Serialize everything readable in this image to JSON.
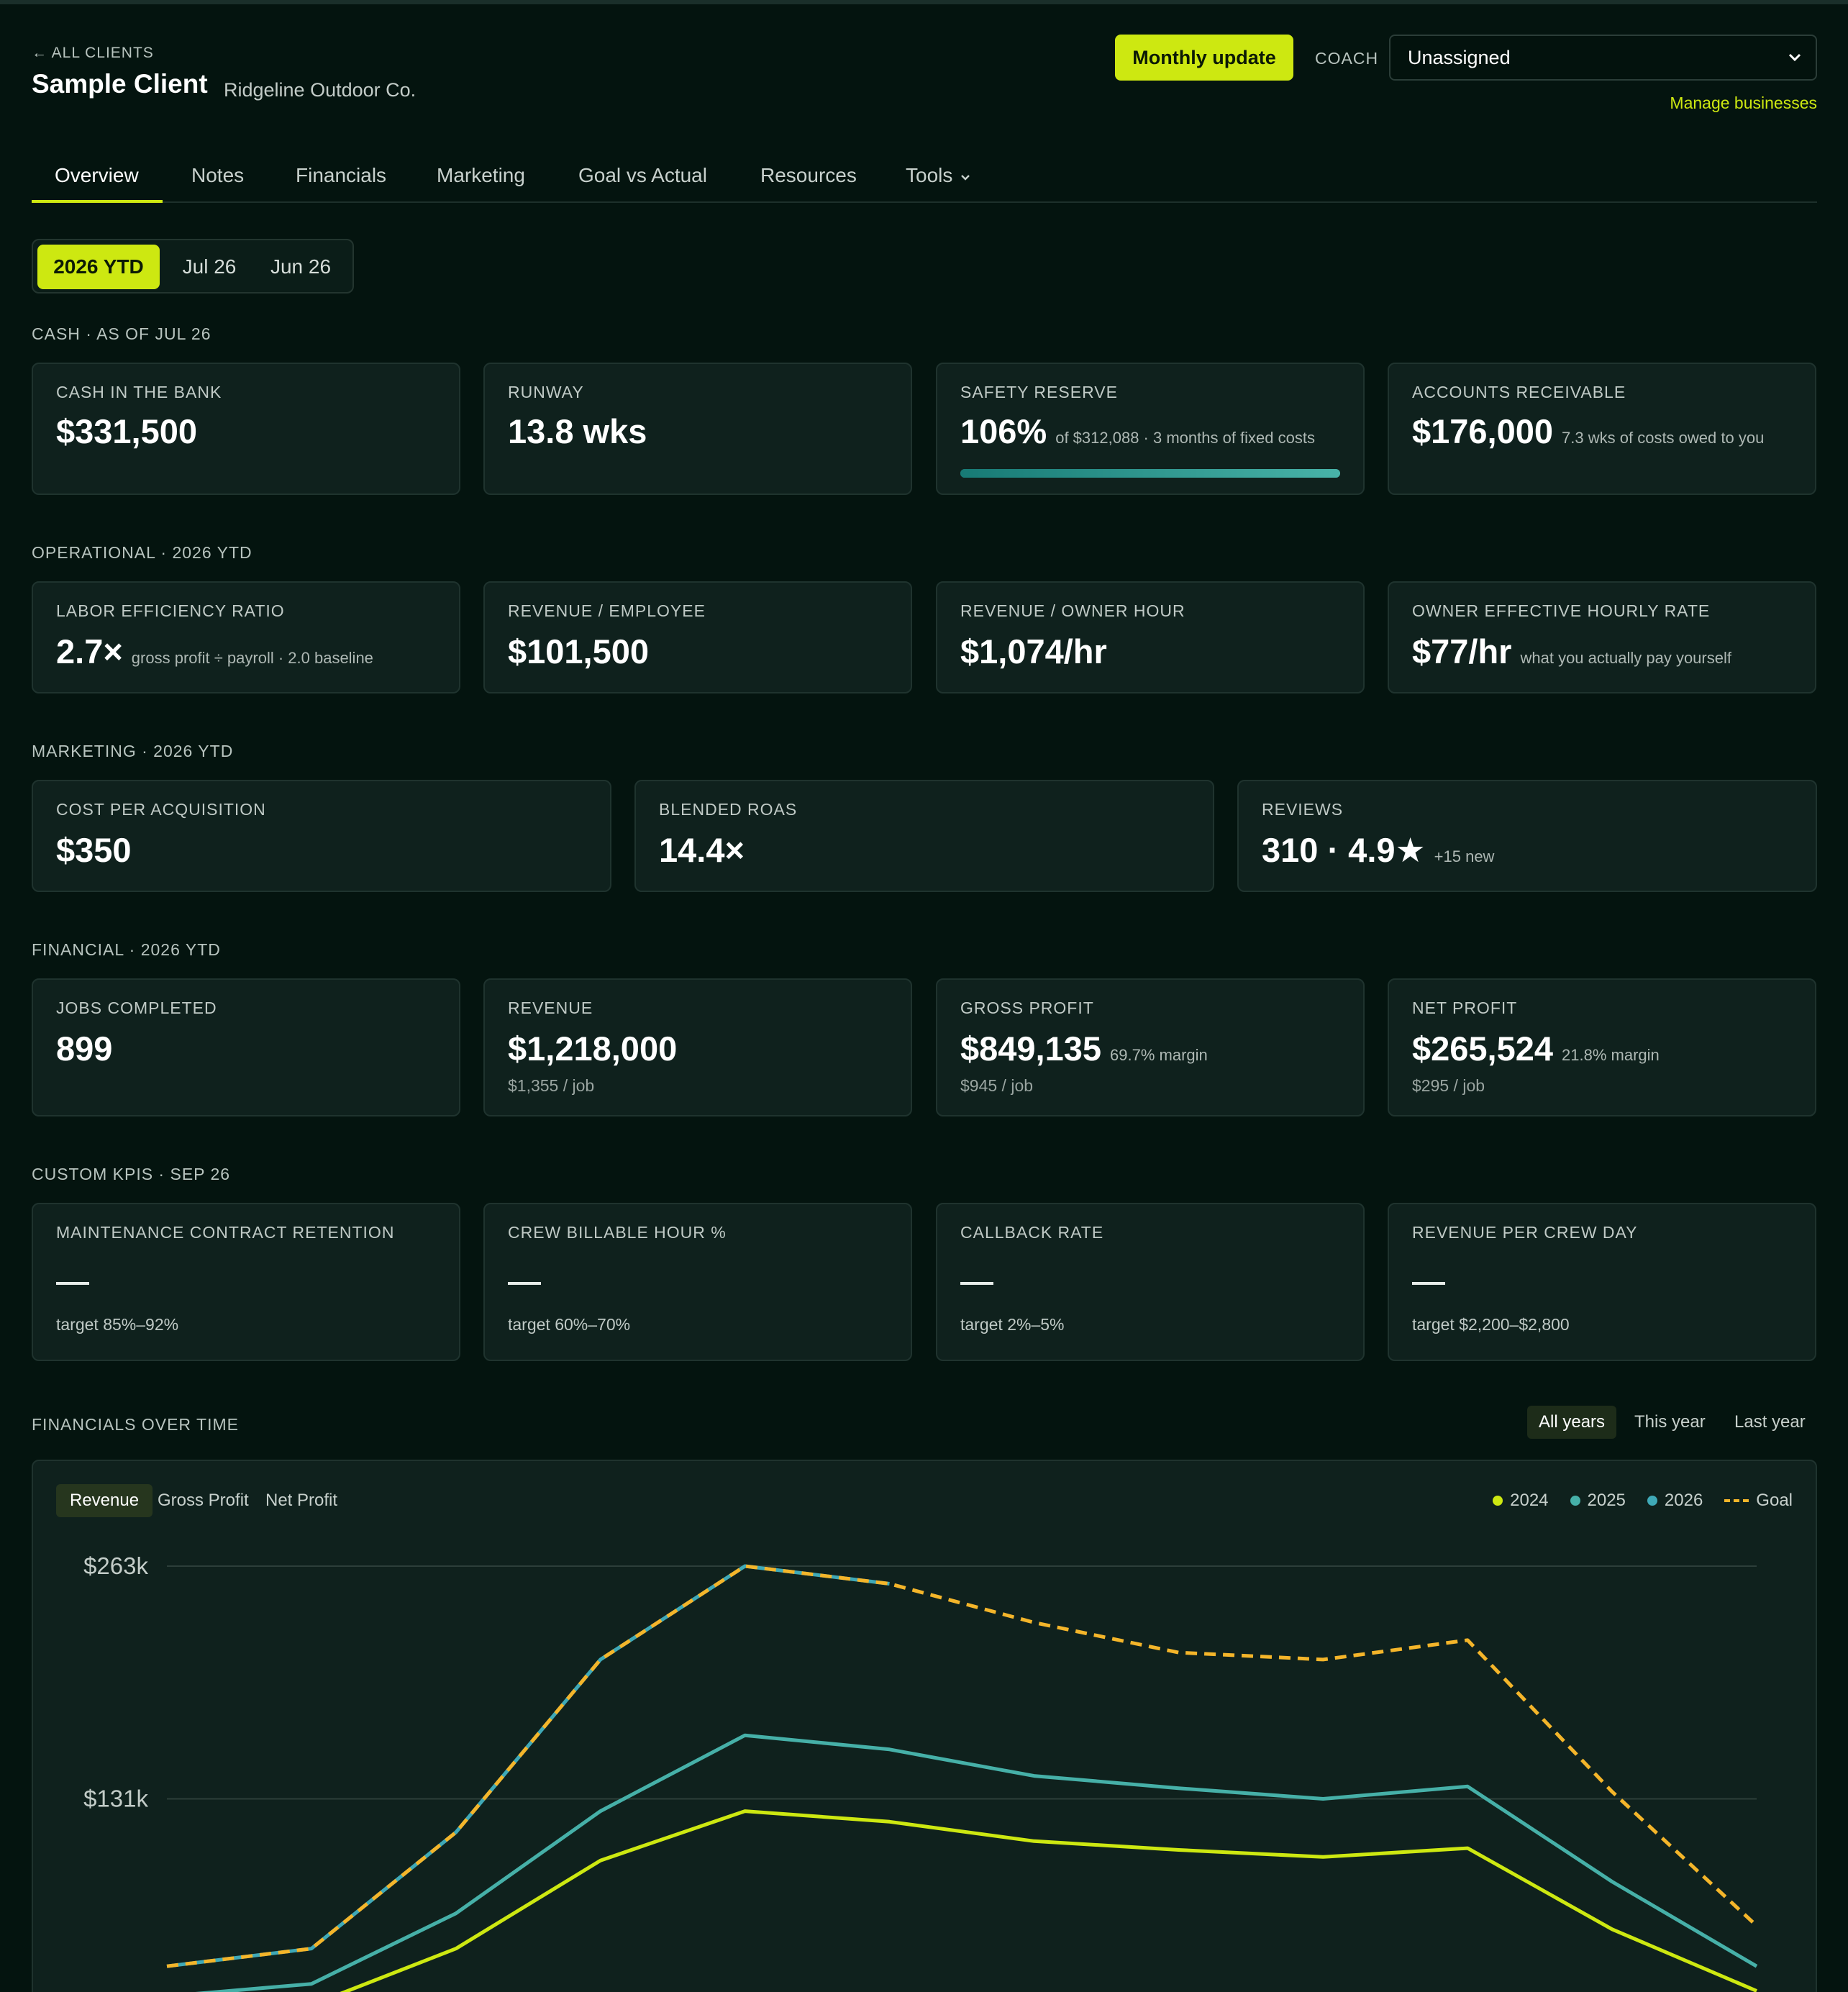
{
  "header": {
    "back_link": "← ALL CLIENTS",
    "client_name": "Sample Client",
    "business_name": "Ridgeline Outdoor Co.",
    "monthly_update_label": "Monthly update",
    "coach_label": "COACH",
    "coach_value": "Unassigned",
    "manage_link": "Manage businesses"
  },
  "tabs": [
    "Overview",
    "Notes",
    "Financials",
    "Marketing",
    "Goal vs Actual",
    "Resources",
    "Tools"
  ],
  "active_tab": "Overview",
  "period": {
    "options": [
      "2026 YTD",
      "Jul 26",
      "Jun 26"
    ],
    "selected": "2026 YTD"
  },
  "cash": {
    "section": "CASH · AS OF JUL 26",
    "cash_in_bank": {
      "label": "CASH IN THE BANK",
      "value": "$331,500"
    },
    "runway": {
      "label": "RUNWAY",
      "value": "13.8 wks"
    },
    "safety_reserve": {
      "label": "SAFETY RESERVE",
      "value": "106%",
      "note": "of $312,088 · 3 months of fixed costs",
      "progress": 1.0
    },
    "accounts_receivable": {
      "label": "ACCOUNTS RECEIVABLE",
      "value": "$176,000",
      "note": "7.3 wks of costs owed to you"
    }
  },
  "operational": {
    "section": "OPERATIONAL · 2026 YTD",
    "labor_efficiency": {
      "label": "LABOR EFFICIENCY RATIO",
      "value": "2.7×",
      "note": "gross profit ÷ payroll · 2.0 baseline"
    },
    "revenue_employee": {
      "label": "REVENUE / EMPLOYEE",
      "value": "$101,500"
    },
    "revenue_owner_hour": {
      "label": "REVENUE / OWNER HOUR",
      "value": "$1,074/hr"
    },
    "owner_rate": {
      "label": "OWNER EFFECTIVE HOURLY RATE",
      "value": "$77/hr",
      "note": "what you actually pay yourself"
    }
  },
  "marketing": {
    "section": "MARKETING · 2026 YTD",
    "cpa": {
      "label": "COST PER ACQUISITION",
      "value": "$350"
    },
    "roas": {
      "label": "BLENDED ROAS",
      "value": "14.4×"
    },
    "reviews": {
      "label": "REVIEWS",
      "value": "310 · 4.9★",
      "note": "+15 new"
    }
  },
  "financial": {
    "section": "FINANCIAL · 2026 YTD",
    "jobs": {
      "label": "JOBS COMPLETED",
      "value": "899"
    },
    "revenue": {
      "label": "REVENUE",
      "value": "$1,218,000",
      "sub": "$1,355 / job"
    },
    "gross_profit": {
      "label": "GROSS PROFIT",
      "value": "$849,135",
      "note": "69.7% margin",
      "sub": "$945 / job"
    },
    "net_profit": {
      "label": "NET PROFIT",
      "value": "$265,524",
      "note": "21.8% margin",
      "sub": "$295 / job"
    }
  },
  "custom_kpis": {
    "section": "CUSTOM KPIS · SEP 26",
    "items": [
      {
        "label": "MAINTENANCE CONTRACT RETENTION",
        "target": "target 85%–92%"
      },
      {
        "label": "CREW BILLABLE HOUR %",
        "target": "target 60%–70%"
      },
      {
        "label": "CALLBACK RATE",
        "target": "target 2%–5%"
      },
      {
        "label": "REVENUE PER CREW DAY",
        "target": "target $2,200–$2,800"
      }
    ]
  },
  "financials_over_time": {
    "section": "FINANCIALS OVER TIME",
    "range_options": [
      "All years",
      "This year",
      "Last year"
    ],
    "range_selected": "All years",
    "metric_tabs": [
      "Revenue",
      "Gross Profit",
      "Net Profit"
    ],
    "metric_selected": "Revenue"
  },
  "colors": {
    "accent": "#cde811",
    "series_2024": "#cde811",
    "series_2025": "#46b0a8",
    "series_2026": "#3fa9b7",
    "goal": "#f4b52a"
  },
  "chart_data": {
    "type": "line",
    "y_tick_labels": [
      "$263k",
      "$131k"
    ],
    "y_ticks": [
      263,
      131
    ],
    "ylim": [
      0,
      263
    ],
    "x": [
      1,
      2,
      3,
      4,
      5,
      6,
      7,
      8,
      9,
      10,
      11,
      12
    ],
    "series": [
      {
        "name": "2024",
        "color": "#cde811",
        "dashed": false,
        "values": [
          8,
          14,
          46,
          96,
          124,
          118,
          107,
          102,
          98,
          103,
          57,
          22
        ]
      },
      {
        "name": "2025",
        "color": "#46b0a8",
        "dashed": false,
        "values": [
          19,
          26,
          66,
          124,
          167,
          159,
          144,
          137,
          131,
          138,
          84,
          36
        ]
      },
      {
        "name": "2026",
        "color": "#3fa9b7",
        "dashed": false,
        "values": [
          36,
          46,
          112,
          210,
          263,
          253,
          null,
          null,
          null,
          null,
          null,
          null
        ]
      },
      {
        "name": "Goal",
        "color": "#f4b52a",
        "dashed": true,
        "values": [
          36,
          46,
          112,
          210,
          263,
          253,
          231,
          214,
          210,
          221,
          135,
          59
        ]
      }
    ],
    "legend": [
      "2024",
      "2025",
      "2026",
      "Goal"
    ],
    "legend_position": "top-right",
    "grid": true
  }
}
